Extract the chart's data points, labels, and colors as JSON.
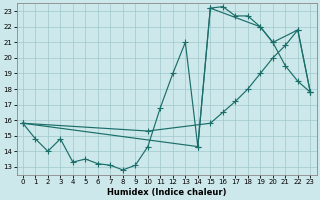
{
  "xlabel": "Humidex (Indice chaleur)",
  "background_color": "#cde8ea",
  "grid_color": "#a0c8cc",
  "line_color": "#1a6e6a",
  "xlim": [
    -0.5,
    23.5
  ],
  "ylim": [
    12.5,
    23.5
  ],
  "yticks": [
    13,
    14,
    15,
    16,
    17,
    18,
    19,
    20,
    21,
    22,
    23
  ],
  "xticks": [
    0,
    1,
    2,
    3,
    4,
    5,
    6,
    7,
    8,
    9,
    10,
    11,
    12,
    13,
    14,
    15,
    16,
    17,
    18,
    19,
    20,
    21,
    22,
    23
  ],
  "line1_x": [
    0,
    1,
    2,
    3,
    4,
    5,
    6,
    7,
    8,
    9,
    10,
    11,
    12,
    13,
    14,
    15,
    16,
    17,
    18,
    19,
    20,
    21,
    22,
    23
  ],
  "line1_y": [
    15.8,
    14.8,
    14.0,
    14.8,
    13.3,
    13.5,
    13.2,
    13.1,
    12.8,
    13.1,
    14.3,
    16.8,
    19.0,
    21.0,
    14.3,
    23.2,
    23.3,
    22.7,
    22.7,
    22.0,
    21.0,
    19.5,
    18.5,
    17.8
  ],
  "line2_x": [
    0,
    10,
    15,
    16,
    17,
    18,
    19,
    20,
    21,
    22,
    23
  ],
  "line2_y": [
    15.8,
    15.3,
    15.8,
    16.5,
    17.2,
    18.0,
    19.0,
    20.0,
    20.8,
    21.8,
    17.8
  ],
  "line3_x": [
    0,
    14,
    15,
    19,
    20,
    22,
    23
  ],
  "line3_y": [
    15.8,
    14.3,
    23.2,
    22.0,
    21.0,
    21.8,
    17.8
  ]
}
